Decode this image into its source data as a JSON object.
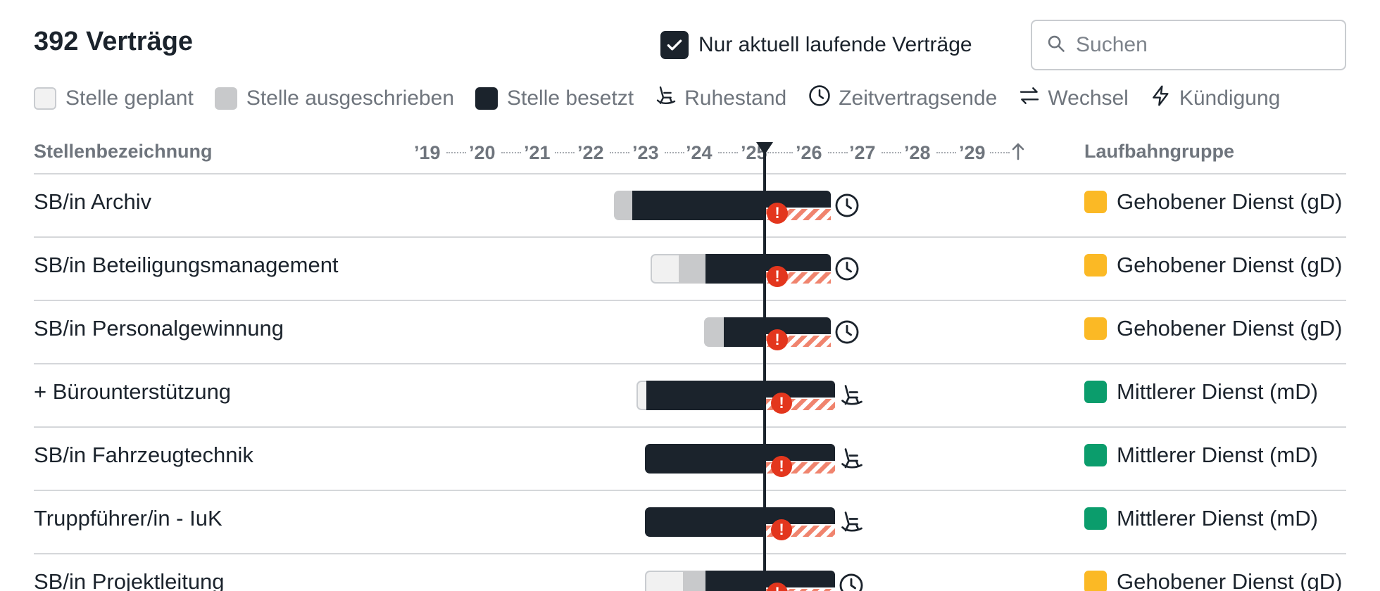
{
  "header": {
    "title": "392 Verträge",
    "only_running_label": "Nur aktuell laufende Verträge",
    "only_running_checked": true,
    "search_placeholder": "Suchen",
    "search_value": ""
  },
  "legend": [
    {
      "key": "planned",
      "label": "Stelle geplant",
      "icon": "planned-swatch"
    },
    {
      "key": "advertised",
      "label": "Stelle ausgeschrieben",
      "icon": "advertised-swatch"
    },
    {
      "key": "filled",
      "label": "Stelle besetzt",
      "icon": "filled-swatch"
    },
    {
      "key": "retirement",
      "label": "Ruhestand",
      "icon": "rocking-chair-icon"
    },
    {
      "key": "fixed-term-end",
      "label": "Zeitvertragsende",
      "icon": "clock-icon"
    },
    {
      "key": "change",
      "label": "Wechsel",
      "icon": "swap-arrows-icon"
    },
    {
      "key": "termination",
      "label": "Kündigung",
      "icon": "lightning-icon"
    }
  ],
  "table": {
    "columns": {
      "name": "Stellenbezeichnung",
      "group": "Laufbahngruppe"
    },
    "years": [
      "’19",
      "’20",
      "’21",
      "’22",
      "’23",
      "’24",
      "’25",
      "’26",
      "’27",
      "’28",
      "’29"
    ],
    "axis_end_icon": "arrow-up-icon",
    "rows": [
      {
        "name": "SB/in Archiv",
        "group": "Gehobener Dienst (gD)",
        "group_color": "#fbb925",
        "end_event": "clock-icon"
      },
      {
        "name": "SB/in Beteiligungsmanagement",
        "group": "Gehobener Dienst (gD)",
        "group_color": "#fbb925",
        "end_event": "clock-icon"
      },
      {
        "name": "SB/in Personalgewinnung",
        "group": "Gehobener Dienst (gD)",
        "group_color": "#fbb925",
        "end_event": "clock-icon"
      },
      {
        "name": "+ Bürounterstützung",
        "group": "Mittlerer Dienst (mD)",
        "group_color": "#0b9d6c",
        "end_event": "rocking-chair-icon"
      },
      {
        "name": "SB/in Fahrzeugtechnik",
        "group": "Mittlerer Dienst (mD)",
        "group_color": "#0b9d6c",
        "end_event": "rocking-chair-icon"
      },
      {
        "name": "Truppführer/in - IuK",
        "group": "Mittlerer Dienst (mD)",
        "group_color": "#0b9d6c",
        "end_event": "rocking-chair-icon"
      },
      {
        "name": "SB/in Projektleitung",
        "group": "Gehobener Dienst (gD)",
        "group_color": "#fbb925",
        "end_event": "clock-icon"
      }
    ]
  },
  "colors": {
    "filled": "#1b232c",
    "advertised": "#c8c9cb",
    "planned": "#f1f1f1",
    "warning": "#e3361d",
    "hatch": "#f0846e",
    "gd": "#fbb925",
    "md": "#0b9d6c"
  }
}
